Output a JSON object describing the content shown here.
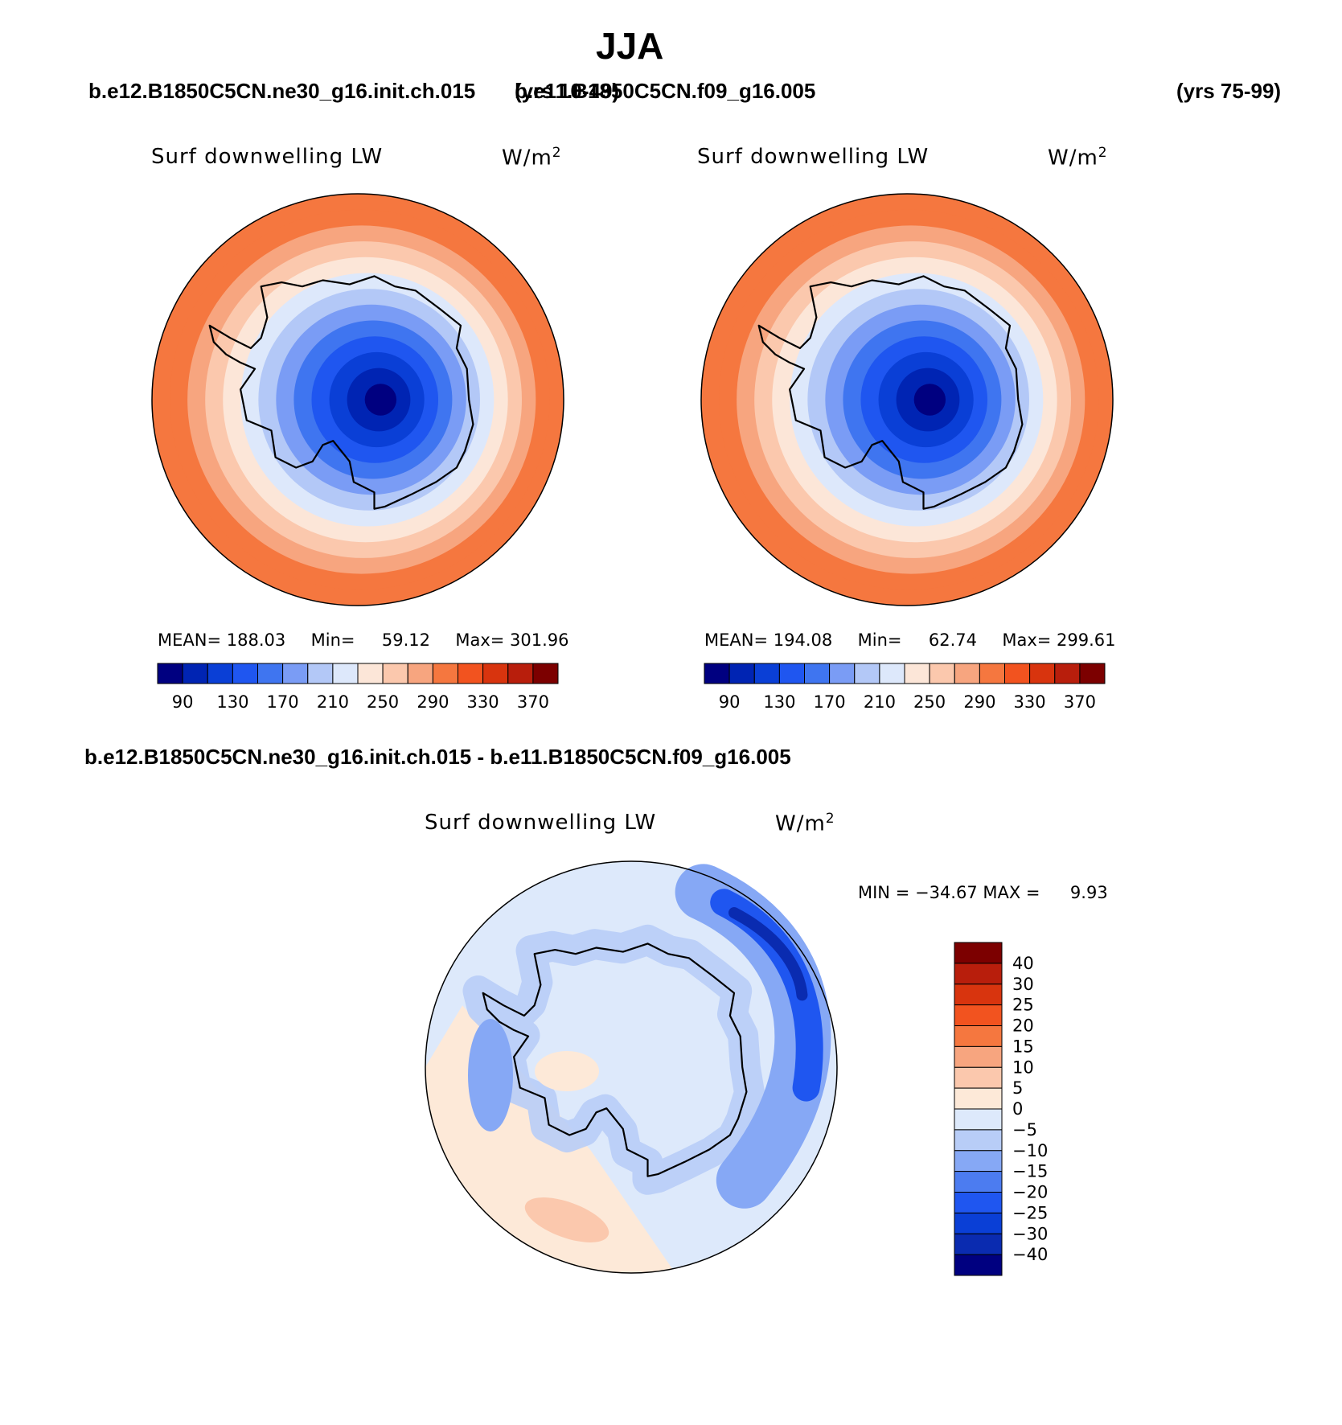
{
  "page_title": "JJA",
  "case1": {
    "name": "b.e12.B1850C5CN.ne30_g16.init.ch.015",
    "years": "(yrs 10-49)"
  },
  "case2": {
    "name": "b.e11.B1850C5CN.f09_g16.005",
    "years": "(yrs 75-99)"
  },
  "diff_title": "b.e12.B1850C5CN.ne30_g16.init.ch.015 - b.e11.B1850C5CN.f09_g16.005",
  "colors": {
    "abs_scale": [
      "#000080",
      "#0024b3",
      "#0a3fd6",
      "#1f56f0",
      "#3f75f0",
      "#7a9cf5",
      "#b3c8f7",
      "#dde8fb",
      "#fce6d8",
      "#fbc8ad",
      "#f7a57f",
      "#f5773f",
      "#f2531f",
      "#d8340e",
      "#b81e0c",
      "#7c0000"
    ],
    "diff_scale": [
      "#000080",
      "#0a2bb0",
      "#0a3fd6",
      "#1f56f0",
      "#4c7cf0",
      "#86a8f5",
      "#b8cdf7",
      "#dde9fb",
      "#fde9d8",
      "#fbc8ad",
      "#f7a57f",
      "#f5773f",
      "#f2531f",
      "#d8340e",
      "#b81e0c",
      "#7c0000"
    ]
  },
  "chart_data": [
    {
      "type": "heatmap",
      "projection": "south-polar-stereographic",
      "title": "Surf downwelling LW",
      "units": "W/m",
      "units_exp": "2",
      "stats": {
        "mean_label": "MEAN=",
        "mean": "188.03",
        "min_label": "Min=",
        "min": "59.12",
        "max_label": "Max=",
        "max": "301.96"
      },
      "levels": [
        90,
        110,
        130,
        150,
        170,
        190,
        210,
        230,
        250,
        270,
        290,
        310,
        330,
        350,
        370
      ],
      "tick_labels": [
        "90",
        "130",
        "170",
        "210",
        "250",
        "290",
        "330",
        "370"
      ],
      "ring_values": [
        300,
        290,
        270,
        250,
        230,
        210,
        190,
        170,
        150,
        130,
        110,
        90,
        70
      ]
    },
    {
      "type": "heatmap",
      "projection": "south-polar-stereographic",
      "title": "Surf downwelling LW",
      "units": "W/m",
      "units_exp": "2",
      "stats": {
        "mean_label": "MEAN=",
        "mean": "194.08",
        "min_label": "Min=",
        "min": "62.74",
        "max_label": "Max=",
        "max": "299.61"
      },
      "levels": [
        90,
        110,
        130,
        150,
        170,
        190,
        210,
        230,
        250,
        270,
        290,
        310,
        330,
        350,
        370
      ],
      "tick_labels": [
        "90",
        "130",
        "170",
        "210",
        "250",
        "290",
        "330",
        "370"
      ],
      "ring_values": [
        300,
        290,
        270,
        250,
        230,
        210,
        190,
        170,
        150,
        130,
        110,
        90,
        70
      ]
    },
    {
      "type": "heatmap",
      "projection": "south-polar-stereographic",
      "title": "Surf downwelling LW",
      "units": "W/m",
      "units_exp": "2",
      "stats": {
        "min_label": "MIN =",
        "min": "−34.67",
        "max_label": "MAX =",
        "max": "9.93"
      },
      "levels": [
        -40,
        -30,
        -25,
        -20,
        -15,
        -10,
        -5,
        0,
        5,
        10,
        15,
        20,
        25,
        30,
        40
      ],
      "tick_labels": [
        "40",
        "30",
        "25",
        "20",
        "15",
        "10",
        "5",
        "0",
        "−5",
        "−10",
        "−15",
        "−20",
        "−25",
        "−30",
        "−40"
      ]
    }
  ]
}
